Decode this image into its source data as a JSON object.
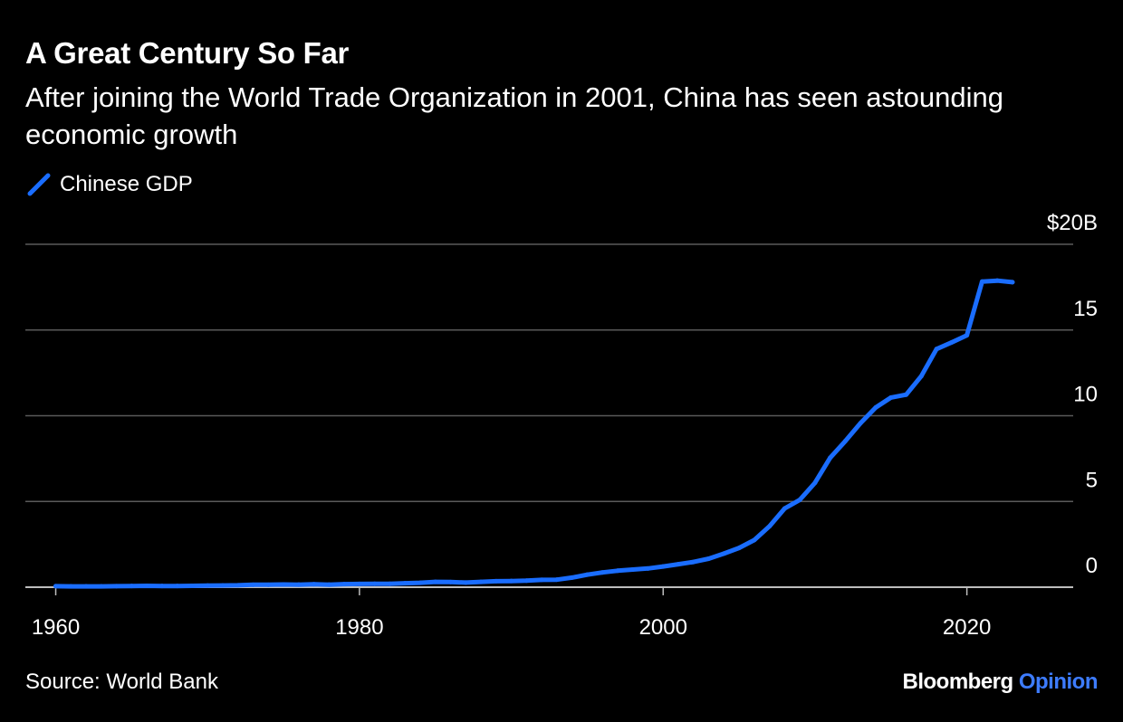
{
  "header": {
    "title": "A Great Century So Far",
    "subtitle": "After joining the World Trade Organization in 2001, China has seen astounding economic growth"
  },
  "footer": {
    "source": "Source: World Bank",
    "brand_primary": "Bloomberg",
    "brand_accent": "Opinion"
  },
  "colors": {
    "background": "#000000",
    "line": "#1a6dff",
    "grid": "#5a5a5a",
    "axis": "#bdbdbd",
    "text": "#ffffff",
    "brand_accent": "#3d7cff"
  },
  "chart_data": {
    "type": "line",
    "title": "A Great Century So Far",
    "xlabel": "",
    "ylabel": "",
    "x_ticks": [
      1960,
      1980,
      2000,
      2020
    ],
    "x_tick_labels": [
      "1960",
      "1980",
      "2000",
      "2020"
    ],
    "y_ticks": [
      0,
      5,
      10,
      15,
      20
    ],
    "y_tick_labels": [
      "0",
      "5",
      "10",
      "15",
      "$20B"
    ],
    "xlim": [
      1958,
      2027
    ],
    "ylim": [
      0,
      20
    ],
    "grid": true,
    "legend_position": "top-left",
    "series": [
      {
        "name": "Chinese GDP",
        "x": [
          1960,
          1961,
          1962,
          1963,
          1964,
          1965,
          1966,
          1967,
          1968,
          1969,
          1970,
          1971,
          1972,
          1973,
          1974,
          1975,
          1976,
          1977,
          1978,
          1979,
          1980,
          1981,
          1982,
          1983,
          1984,
          1985,
          1986,
          1987,
          1988,
          1989,
          1990,
          1991,
          1992,
          1993,
          1994,
          1995,
          1996,
          1997,
          1998,
          1999,
          2000,
          2001,
          2002,
          2003,
          2004,
          2005,
          2006,
          2007,
          2008,
          2009,
          2010,
          2011,
          2012,
          2013,
          2014,
          2015,
          2016,
          2017,
          2018,
          2019,
          2020,
          2021,
          2022,
          2023
        ],
        "values": [
          0.06,
          0.05,
          0.05,
          0.05,
          0.06,
          0.07,
          0.08,
          0.07,
          0.07,
          0.08,
          0.09,
          0.1,
          0.11,
          0.14,
          0.14,
          0.16,
          0.15,
          0.17,
          0.15,
          0.18,
          0.19,
          0.2,
          0.2,
          0.23,
          0.26,
          0.31,
          0.3,
          0.27,
          0.31,
          0.35,
          0.36,
          0.38,
          0.43,
          0.44,
          0.56,
          0.73,
          0.86,
          0.96,
          1.03,
          1.09,
          1.21,
          1.34,
          1.47,
          1.66,
          1.96,
          2.29,
          2.75,
          3.55,
          4.59,
          5.1,
          6.09,
          7.55,
          8.53,
          9.57,
          10.48,
          11.06,
          11.23,
          12.31,
          13.89,
          14.28,
          14.69,
          17.82,
          17.88,
          17.79
        ]
      }
    ]
  }
}
